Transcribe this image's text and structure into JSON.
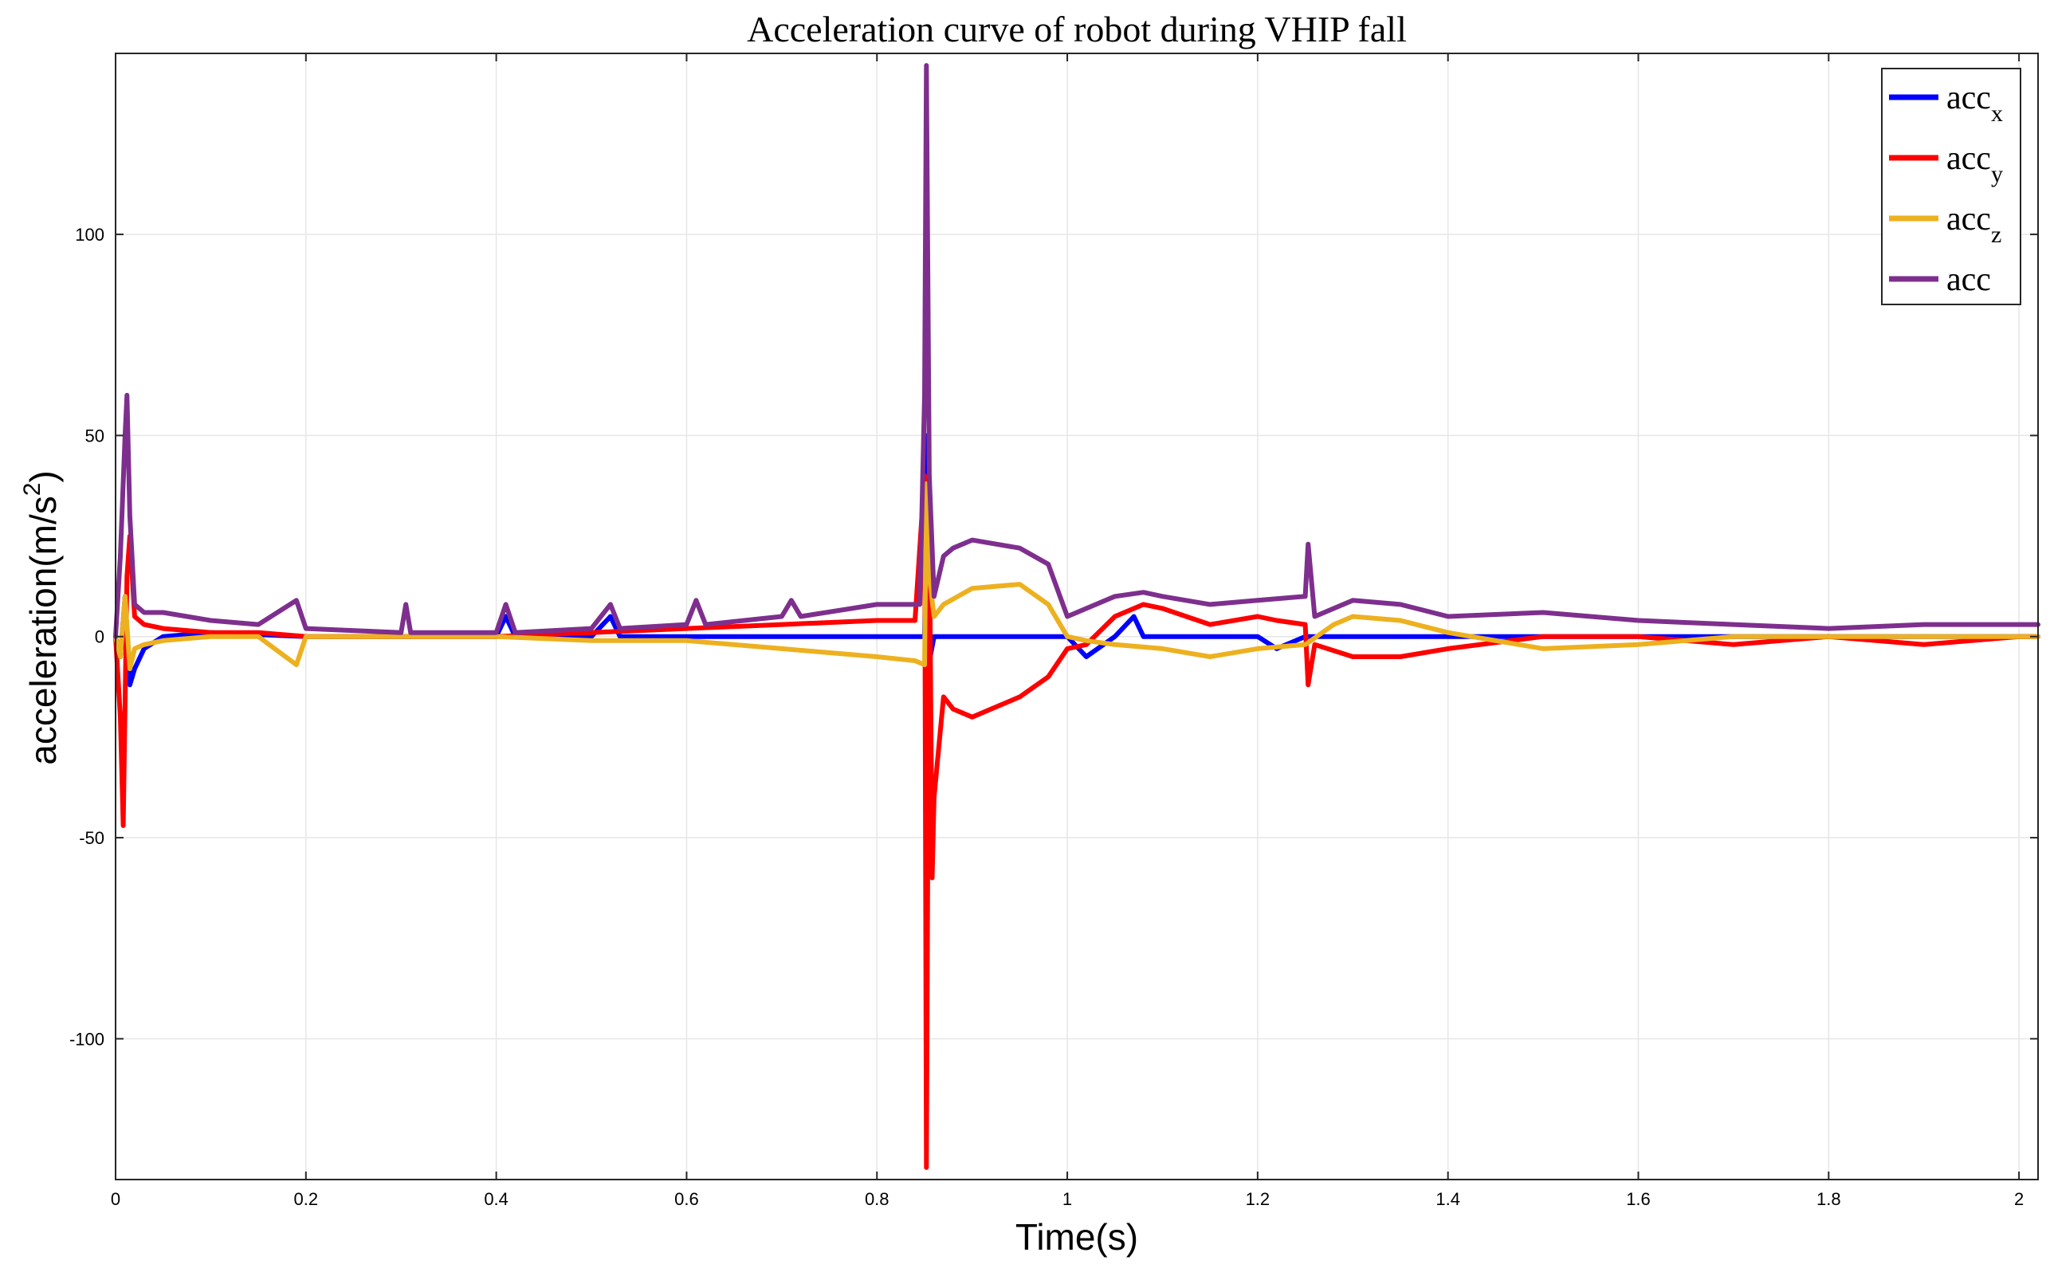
{
  "chart_data": {
    "type": "line",
    "title": "Acceleration curve of robot during VHIP fall",
    "xlabel": "Time(s)",
    "ylabel": "acceleration(m/s",
    "ylabel_sup": "2",
    "ylabel_close": ")",
    "xlim": [
      0,
      2.02
    ],
    "ylim": [
      -135,
      145
    ],
    "xticks": [
      0,
      0.2,
      0.4,
      0.6,
      0.8,
      1,
      1.2,
      1.4,
      1.6,
      1.8,
      2
    ],
    "xtick_labels": [
      "0",
      "0.2",
      "0.4",
      "0.6",
      "0.8",
      "1",
      "1.2",
      "1.4",
      "1.6",
      "1.8",
      "2"
    ],
    "yticks": [
      -100,
      -50,
      0,
      50,
      100
    ],
    "ytick_labels": [
      "-100",
      "-50",
      "0",
      "50",
      "100"
    ],
    "grid": true,
    "legend_position": "top-right",
    "series": [
      {
        "name": "acc_x",
        "legend_main": "acc",
        "legend_sub": "x",
        "color": "#0000ff",
        "x": [
          0,
          0.005,
          0.01,
          0.015,
          0.02,
          0.03,
          0.05,
          0.1,
          0.15,
          0.2,
          0.3,
          0.4,
          0.41,
          0.42,
          0.5,
          0.52,
          0.53,
          0.6,
          0.7,
          0.8,
          0.85,
          0.853,
          0.856,
          0.86,
          0.9,
          0.95,
          0.98,
          1.0,
          1.02,
          1.05,
          1.07,
          1.08,
          1.1,
          1.15,
          1.2,
          1.22,
          1.25,
          1.3,
          1.35,
          1.4,
          1.5,
          1.6,
          1.7,
          1.8,
          1.9,
          2.0,
          2.02
        ],
        "y": [
          0,
          -5,
          10,
          -12,
          -8,
          -3,
          0,
          1,
          0.5,
          0,
          0,
          0,
          5,
          0,
          0,
          5,
          0,
          0,
          0,
          0,
          0,
          50,
          -5,
          0,
          0,
          0,
          0,
          0,
          -5,
          0,
          5,
          0,
          0,
          0,
          0,
          -3,
          0,
          0,
          0,
          0,
          0,
          0,
          0,
          0,
          0,
          0,
          0
        ]
      },
      {
        "name": "acc_y",
        "legend_main": "acc",
        "legend_sub": "y",
        "color": "#ff0000",
        "x": [
          0,
          0.005,
          0.008,
          0.012,
          0.015,
          0.02,
          0.03,
          0.05,
          0.1,
          0.15,
          0.2,
          0.3,
          0.4,
          0.5,
          0.6,
          0.7,
          0.8,
          0.84,
          0.85,
          0.852,
          0.855,
          0.858,
          0.86,
          0.87,
          0.88,
          0.9,
          0.95,
          0.98,
          1.0,
          1.02,
          1.05,
          1.08,
          1.1,
          1.15,
          1.2,
          1.22,
          1.25,
          1.253,
          1.26,
          1.3,
          1.35,
          1.4,
          1.5,
          1.6,
          1.7,
          1.8,
          1.9,
          2.0,
          2.02
        ],
        "y": [
          0,
          -20,
          -47,
          15,
          25,
          5,
          3,
          2,
          1,
          1,
          0,
          0,
          0,
          1,
          2,
          3,
          4,
          4,
          40,
          -132,
          30,
          -60,
          -40,
          -15,
          -18,
          -20,
          -15,
          -10,
          -3,
          -2,
          5,
          8,
          7,
          3,
          5,
          4,
          3,
          -12,
          -2,
          -5,
          -5,
          -3,
          0,
          0,
          -2,
          0,
          -2,
          0,
          0
        ]
      },
      {
        "name": "acc_z",
        "legend_main": "acc",
        "legend_sub": "z",
        "color": "#edb120",
        "x": [
          0,
          0.005,
          0.01,
          0.015,
          0.02,
          0.03,
          0.05,
          0.1,
          0.15,
          0.19,
          0.2,
          0.3,
          0.4,
          0.5,
          0.6,
          0.7,
          0.8,
          0.84,
          0.85,
          0.852,
          0.855,
          0.86,
          0.87,
          0.9,
          0.95,
          0.98,
          1.0,
          1.02,
          1.05,
          1.1,
          1.15,
          1.2,
          1.25,
          1.28,
          1.3,
          1.35,
          1.4,
          1.5,
          1.6,
          1.7,
          1.8,
          1.9,
          2.0,
          2.02
        ],
        "y": [
          0,
          -5,
          10,
          -8,
          -3,
          -2,
          -1,
          0,
          0,
          -7,
          0,
          0,
          0,
          -1,
          -1,
          -3,
          -5,
          -6,
          -7,
          38,
          15,
          5,
          8,
          12,
          13,
          8,
          0,
          -1,
          -2,
          -3,
          -5,
          -3,
          -2,
          3,
          5,
          4,
          1,
          -3,
          -2,
          0,
          0,
          0,
          0,
          0
        ]
      },
      {
        "name": "acc",
        "legend_main": "acc",
        "legend_sub": "",
        "color": "#7e2f8e",
        "x": [
          0,
          0.005,
          0.01,
          0.012,
          0.015,
          0.02,
          0.03,
          0.05,
          0.1,
          0.15,
          0.19,
          0.2,
          0.3,
          0.305,
          0.31,
          0.4,
          0.41,
          0.42,
          0.5,
          0.52,
          0.53,
          0.6,
          0.61,
          0.62,
          0.7,
          0.71,
          0.72,
          0.8,
          0.845,
          0.85,
          0.852,
          0.855,
          0.86,
          0.87,
          0.88,
          0.9,
          0.95,
          0.98,
          1.0,
          1.05,
          1.08,
          1.1,
          1.15,
          1.2,
          1.25,
          1.253,
          1.26,
          1.3,
          1.35,
          1.4,
          1.5,
          1.6,
          1.7,
          1.8,
          1.9,
          2.0,
          2.02
        ],
        "y": [
          0,
          20,
          50,
          60,
          30,
          8,
          6,
          6,
          4,
          3,
          9,
          2,
          1,
          8,
          1,
          1,
          8,
          1,
          2,
          8,
          2,
          3,
          9,
          3,
          5,
          9,
          5,
          8,
          8,
          60,
          142,
          40,
          10,
          20,
          22,
          24,
          22,
          18,
          5,
          10,
          11,
          10,
          8,
          9,
          10,
          23,
          5,
          9,
          8,
          5,
          6,
          4,
          3,
          2,
          3,
          3,
          3
        ]
      }
    ]
  }
}
